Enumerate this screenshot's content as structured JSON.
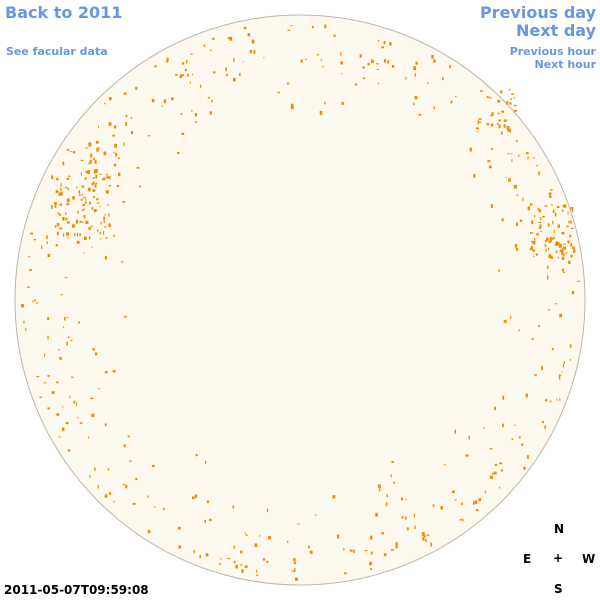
{
  "nav": {
    "back": "Back to 2011",
    "facular": "See facular data",
    "prev_day": "Previous day",
    "next_day": "Next day",
    "prev_hour": "Previous hour",
    "next_hour": "Next hour"
  },
  "timestamp": "2011-05-07T09:59:08",
  "compass": {
    "north": "N",
    "east": "E",
    "center": "+",
    "west": "W",
    "south": "S"
  }
}
